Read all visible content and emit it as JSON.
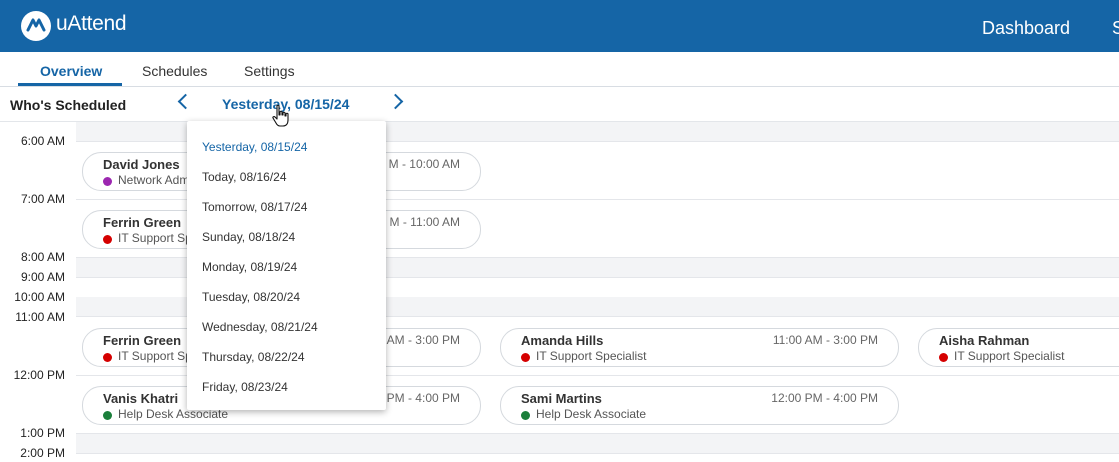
{
  "header": {
    "brand": "uAttend",
    "nav_dashboard": "Dashboard",
    "nav_next_partial": "S"
  },
  "tabs": [
    {
      "label": "Overview"
    },
    {
      "label": "Schedules"
    },
    {
      "label": "Settings"
    }
  ],
  "toolbar": {
    "title": "Who's Scheduled",
    "current_date": "Yesterday, 08/15/24"
  },
  "times": [
    "6:00 AM",
    "7:00 AM",
    "8:00 AM",
    "9:00 AM",
    "10:00 AM",
    "11:00 AM",
    "12:00 PM",
    "1:00 PM",
    "2:00 PM"
  ],
  "shifts": [
    {
      "name": "David Jones",
      "role": "Network Adm",
      "time": "M - 10:00 AM",
      "color": "#9c27b0"
    },
    {
      "name": "Ferrin Green",
      "role": "IT Support Sp",
      "time": "M - 11:00 AM",
      "color": "#d50000"
    },
    {
      "name": "Ferrin Green",
      "role": "IT Support Sp",
      "time": "AM - 3:00 PM",
      "color": "#d50000"
    },
    {
      "name": "Amanda Hills",
      "role": "IT Support Specialist",
      "time": "11:00 AM - 3:00 PM",
      "color": "#d50000"
    },
    {
      "name": "Aisha Rahman",
      "role": "IT Support Specialist",
      "time": "",
      "color": "#d50000"
    },
    {
      "name": "Vanis Khatri",
      "role": "Help Desk Associate",
      "time": "PM - 4:00 PM",
      "color": "#1b7f3b"
    },
    {
      "name": "Sami Martins",
      "role": "Help Desk Associate",
      "time": "12:00 PM - 4:00 PM",
      "color": "#1b7f3b"
    }
  ],
  "date_options": [
    "Yesterday, 08/15/24",
    "Today, 08/16/24",
    "Tomorrow, 08/17/24",
    "Sunday, 08/18/24",
    "Monday, 08/19/24",
    "Tuesday, 08/20/24",
    "Wednesday, 08/21/24",
    "Thursday, 08/22/24",
    "Friday, 08/23/24"
  ],
  "colors": {
    "brand_blue": "#1565a6",
    "network_admin": "#9c27b0",
    "it_support": "#d50000",
    "help_desk": "#1b7f3b"
  }
}
